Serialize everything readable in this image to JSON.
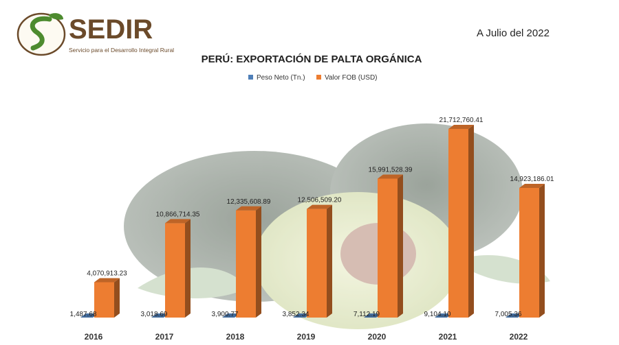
{
  "brand": {
    "name": "SEDIR",
    "tagline": "Servicio para el Desarrollo Integral Rural"
  },
  "date_note": "A Julio del 2022",
  "colors": {
    "peso": "#4f7fb8",
    "valor": "#ed7d31",
    "logo_green": "#4d8b2f",
    "logo_brown": "#6b4a2a"
  },
  "chart_data": {
    "type": "bar",
    "title": "PERÚ: EXPORTACIÓN DE PALTA ORGÁNICA",
    "categories": [
      "2016",
      "2017",
      "2018",
      "2019",
      "2020",
      "2021",
      "2022"
    ],
    "series": [
      {
        "name": "Peso Neto (Tn.)",
        "values": [
          1487.68,
          3018.69,
          3900.77,
          3852.34,
          7112.19,
          9104.1,
          7005.36
        ],
        "labels": [
          "1,487.68",
          "3,018.69",
          "3,900.77",
          "3,852.34",
          "7,112.19",
          "9,104.10",
          "7,005.36"
        ]
      },
      {
        "name": "Valor FOB (USD)",
        "values": [
          4070913.23,
          10866714.35,
          12335608.89,
          12506509.2,
          15991528.39,
          21712760.41,
          14923186.01
        ],
        "labels": [
          "4,070,913.23",
          "10,866,714.35",
          "12,335,608.89",
          "12,506,509.20",
          "15,991,528.39",
          "21,712,760.41",
          "14,923,186.01"
        ]
      }
    ],
    "ylim": [
      0,
      23000000
    ],
    "legend": "top-center",
    "grid": false,
    "style": "3d-column"
  }
}
